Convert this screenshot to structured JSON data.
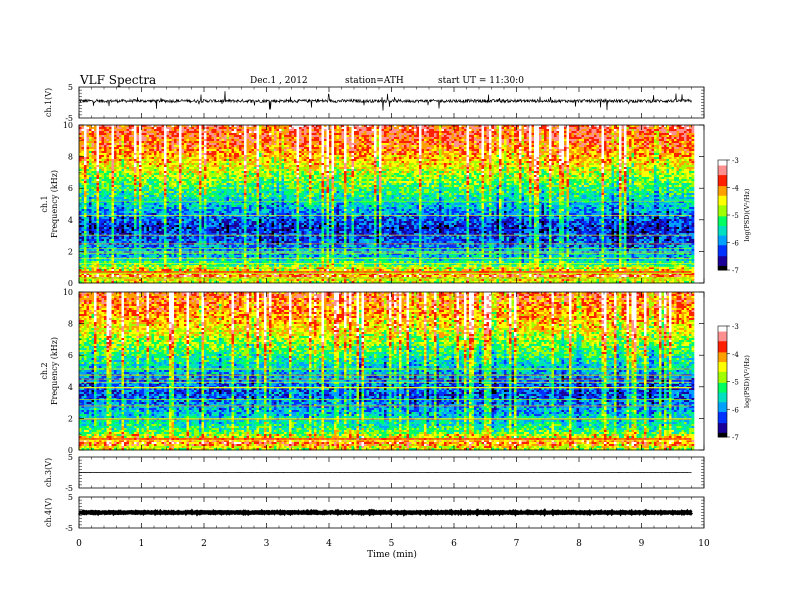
{
  "header": {
    "title": "VLF Spectra",
    "date": "Dec.1 , 2012",
    "station": "station=ATH",
    "start": "start UT =  11:30:0"
  },
  "colors": {
    "background": "#ffffff",
    "axes": "#000000",
    "colormap": [
      "#000000",
      "#1a0099",
      "#0033ff",
      "#00a0ff",
      "#00e0c0",
      "#00ff60",
      "#a0ff00",
      "#ffff00",
      "#ffa000",
      "#ff2000",
      "#ff9090",
      "#ffffff"
    ]
  },
  "chart_data": [
    {
      "type": "line",
      "panel": "ch1-waveform",
      "ylabel": "ch.1(V)",
      "yticks": [
        "5",
        "-5"
      ],
      "ylim": [
        -5,
        5
      ],
      "xlim": [
        0,
        10
      ],
      "approx_level": 0.5,
      "approx_noise": 0.5,
      "data_end_min": 9.8
    },
    {
      "type": "heatmap",
      "panel": "ch1-spectrogram",
      "channel": "ch.1",
      "ylabel": "Frequency (kHz)",
      "yticks": [
        "0",
        "2",
        "4",
        "6",
        "8",
        "10"
      ],
      "ylim": [
        0,
        10
      ],
      "xlim": [
        0,
        10
      ],
      "colorbar": {
        "label": "log(PSD)(V²/Hz)",
        "ticks": [
          "-3",
          "-4",
          "-5",
          "-6",
          "-7"
        ],
        "range": [
          -7,
          -3
        ]
      },
      "psd_profile": {
        "freq_khz": [
          0,
          0.5,
          0.8,
          1.5,
          2.5,
          3.5,
          4.5,
          5.5,
          6.5,
          7.5,
          8.5,
          10
        ],
        "log_psd": [
          -4.8,
          -4.0,
          -4.6,
          -5.6,
          -6.1,
          -6.4,
          -5.9,
          -5.4,
          -4.9,
          -4.4,
          -3.9,
          -3.6
        ]
      },
      "data_end_min": 9.8
    },
    {
      "type": "heatmap",
      "panel": "ch2-spectrogram",
      "channel": "ch.2",
      "ylabel": "Frequency (kHz)",
      "yticks": [
        "0",
        "2",
        "4",
        "6",
        "8",
        "10"
      ],
      "ylim": [
        0,
        10
      ],
      "xlim": [
        0,
        10
      ],
      "colorbar": {
        "label": "log(PSD)(V²/Hz)",
        "ticks": [
          "-3",
          "-4",
          "-5",
          "-6",
          "-7"
        ],
        "range": [
          -7,
          -3
        ]
      },
      "psd_profile": {
        "freq_khz": [
          0,
          0.5,
          0.8,
          1.5,
          2.5,
          3.5,
          4.5,
          5.5,
          6.5,
          7.5,
          8.5,
          10
        ],
        "log_psd": [
          -4.8,
          -4.0,
          -4.7,
          -5.4,
          -5.8,
          -6.2,
          -6.0,
          -5.5,
          -5.0,
          -4.5,
          -4.1,
          -3.8
        ]
      },
      "data_end_min": 9.8
    },
    {
      "type": "line",
      "panel": "ch3-waveform",
      "ylabel": "ch.3(V)",
      "yticks": [
        "5",
        "-5"
      ],
      "ylim": [
        -5,
        5
      ],
      "xlim": [
        0,
        10
      ],
      "approx_level": 0,
      "approx_noise": 0.05,
      "data_end_min": 9.8
    },
    {
      "type": "line",
      "panel": "ch4-waveform",
      "ylabel": "ch.4(V)",
      "yticks": [
        "5",
        "-5"
      ],
      "ylim": [
        -5,
        5
      ],
      "xlim": [
        0,
        10
      ],
      "approx_level": 0,
      "approx_noise": 0.15,
      "data_end_min": 9.8
    }
  ],
  "xaxis": {
    "label": "Time (min)",
    "ticks": [
      "0",
      "1",
      "2",
      "3",
      "4",
      "5",
      "6",
      "7",
      "8",
      "9",
      "10"
    ]
  }
}
